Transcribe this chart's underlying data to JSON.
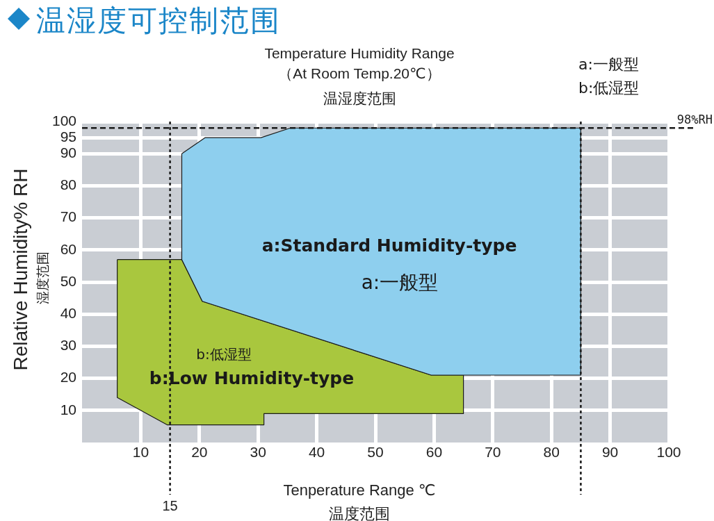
{
  "chart_data": {
    "type": "area",
    "title": "温湿度可控制范围",
    "subtitle": "Temperature Humidity Range\n（At Room Temp.20℃）",
    "xlabel": "Tenperature Range ℃",
    "ylabel": "Relative Humidity% RH",
    "series": [
      {
        "color": "#8ecfee",
        "x": [
          17,
          21,
          30.5,
          35.5,
          85,
          85,
          59.5,
          20.5,
          17
        ],
        "values": [
          90,
          95,
          95,
          98,
          98,
          21,
          21,
          44,
          57
        ]
      },
      {
        "color": "#a9c73e",
        "x": [
          6,
          17,
          20.5,
          59.5,
          65,
          65,
          31,
          31,
          14.5,
          6
        ],
        "values": [
          57,
          57,
          44,
          21,
          21,
          9,
          9,
          5.5,
          5.5,
          14
        ]
      }
    ],
    "xlim": [
      0,
      100
    ],
    "ylim": [
      0,
      100
    ],
    "xticks": [
      10,
      20,
      30,
      40,
      50,
      60,
      70,
      80,
      90,
      100
    ],
    "yticks": [
      10,
      20,
      30,
      40,
      50,
      60,
      70,
      80,
      90,
      95,
      100
    ],
    "grid": true,
    "marker": "none",
    "ref_lines": [
      {
        "axis": "x",
        "value": 15,
        "label": "15",
        "line_style": "dotted"
      },
      {
        "axis": "x",
        "value": 85,
        "line_style": "dotted"
      },
      {
        "axis": "y",
        "value": 98,
        "label": "98%RH",
        "line_style": "dashed"
      }
    ],
    "annotations": [
      "温湿度范围",
      "温度范围",
      "湿度范围",
      "a:一般型",
      "b:低湿型",
      "a:Standard Humidity-type",
      "a:一般型",
      "b:低湿型",
      "b:Low Humidity-type"
    ]
  }
}
